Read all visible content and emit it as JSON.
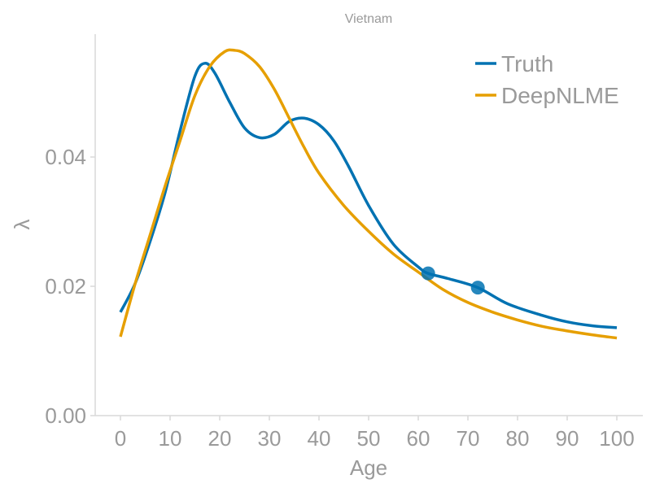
{
  "chart_data": {
    "type": "line",
    "title": "Vietnam",
    "xlabel": "Age",
    "ylabel": "λ",
    "xlim": [
      -5,
      105
    ],
    "ylim": [
      0,
      0.059
    ],
    "x_ticks": [
      0,
      10,
      20,
      30,
      40,
      50,
      60,
      70,
      80,
      90,
      100
    ],
    "x_tick_labels": [
      "0",
      "10",
      "20",
      "30",
      "40",
      "50",
      "60",
      "70",
      "80",
      "90",
      "100"
    ],
    "y_ticks": [
      0.0,
      0.02,
      0.04
    ],
    "y_tick_labels": [
      "0.00",
      "0.02",
      "0.04"
    ],
    "grid": false,
    "legend_position": "top-right",
    "series": [
      {
        "name": "Truth",
        "color": "#0072b2",
        "x": [
          0,
          3,
          6,
          9,
          12,
          15,
          17,
          19,
          22,
          25,
          28,
          31,
          34,
          37,
          40,
          43,
          46,
          50,
          55,
          60,
          62,
          66,
          72,
          78,
          85,
          90,
          95,
          100
        ],
        "y": [
          0.016,
          0.0205,
          0.027,
          0.0345,
          0.044,
          0.0525,
          0.0545,
          0.053,
          0.0485,
          0.0445,
          0.043,
          0.0435,
          0.0455,
          0.046,
          0.045,
          0.0425,
          0.0385,
          0.0325,
          0.0265,
          0.023,
          0.022,
          0.0212,
          0.0198,
          0.0173,
          0.0155,
          0.0145,
          0.0139,
          0.0136
        ]
      },
      {
        "name": "DeepNLME",
        "color": "#e69f00",
        "x": [
          0,
          3,
          6,
          9,
          12,
          15,
          18,
          21,
          23,
          25,
          28,
          31,
          34,
          37,
          40,
          45,
          50,
          55,
          60,
          65,
          70,
          75,
          80,
          85,
          90,
          95,
          100
        ],
        "y": [
          0.0122,
          0.0205,
          0.028,
          0.0355,
          0.0425,
          0.0495,
          0.054,
          0.0563,
          0.0565,
          0.056,
          0.054,
          0.0505,
          0.046,
          0.0415,
          0.0375,
          0.0325,
          0.0285,
          0.025,
          0.0222,
          0.0195,
          0.0175,
          0.016,
          0.0148,
          0.0138,
          0.0131,
          0.0125,
          0.012
        ]
      }
    ],
    "markers": [
      {
        "series": "Truth",
        "x": 62,
        "y": 0.022
      },
      {
        "series": "Truth",
        "x": 72,
        "y": 0.0198
      }
    ]
  }
}
